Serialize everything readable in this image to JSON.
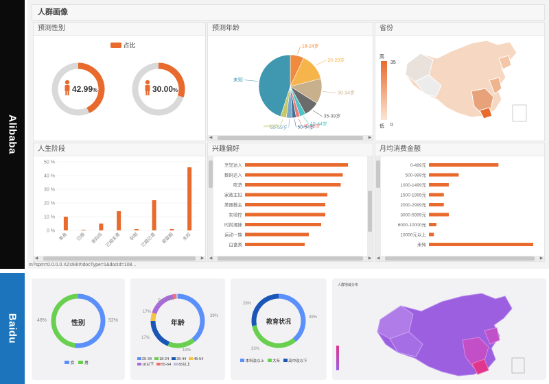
{
  "sidebar": {
    "alibaba": "Alibaba",
    "baidu": "Baidu"
  },
  "alibaba": {
    "header": "人群画像",
    "gender": {
      "title": "预测性别",
      "legend": "占比",
      "male_pct": "42.99",
      "female_pct": "30.00",
      "pct_unit": "%",
      "male_fraction": 0.4299,
      "female_fraction": 0.3,
      "color_fill": "#e86a2d",
      "color_track": "#d9d9d9"
    },
    "age": {
      "title": "预测年龄",
      "chart_data": {
        "type": "pie",
        "labels": [
          "18-24岁",
          "25-29岁",
          "30-34岁",
          "35-39岁",
          "40-44岁",
          "45-49岁",
          "50-54岁",
          "55-59岁",
          ">=60岁",
          "未知"
        ],
        "values": [
          7,
          14,
          13,
          8,
          3,
          2,
          2,
          3,
          3,
          45
        ],
        "colors": [
          "#f08a3c",
          "#f6b54b",
          "#c9b08c",
          "#6b6b6b",
          "#4dc3c7",
          "#f07a7a",
          "#3f6f91",
          "#7aa9c9",
          "#c5c76a",
          "#3f97b0"
        ]
      }
    },
    "province": {
      "title": "省份",
      "legend_high": "高",
      "legend_low": "低",
      "legend_max": "35",
      "legend_min": "0"
    },
    "life_stage": {
      "title": "人生阶段",
      "chart_data": {
        "type": "bar",
        "categories": [
          "单身",
          "已婚",
          "准妈妈",
          "已婚未育",
          "孕期",
          "已婚已育",
          "育婴期",
          "未知"
        ],
        "values": [
          10,
          0.5,
          5,
          14,
          1,
          22,
          1,
          46
        ],
        "yticks": [
          "50 %",
          "40 %",
          "30 %",
          "20 %",
          "10 %",
          "0 %"
        ],
        "ylim": [
          0,
          50
        ],
        "color": "#e86a2d"
      }
    },
    "interests": {
      "title": "兴趣偏好",
      "chart_data": {
        "type": "bar",
        "categories": [
          "烹饪达人",
          "数码达人",
          "吃货",
          "家政主妇",
          "美丽教主",
          "实验控",
          "时尚潮妹",
          "运动一族",
          "白富美"
        ],
        "values": [
          100,
          95,
          93,
          80,
          78,
          78,
          74,
          62,
          58
        ],
        "color": "#e86a2d"
      }
    },
    "spend": {
      "title": "月均消费金额",
      "chart_data": {
        "type": "bar",
        "categories": [
          "0-499元",
          "500-999元",
          "1000-1499元",
          "1500-1999元",
          "2000-2999元",
          "3000-5999元",
          "6000-10000元",
          "10000元以上",
          "未知"
        ],
        "values": [
          28,
          12,
          8,
          6,
          6,
          8,
          3,
          2,
          42
        ],
        "color": "#e86a2d"
      }
    },
    "url": "m?spm=0.0.0.0.XZs93I#!docType=1&docId=108..."
  },
  "baidu": {
    "gender": {
      "center": "性别",
      "left_pct": "48%",
      "right_pct": "52%",
      "legend": [
        "女",
        "男"
      ],
      "chart_data": {
        "type": "pie",
        "labels": [
          "男",
          "女"
        ],
        "values": [
          52,
          48
        ],
        "colors": [
          "#5b8ff9",
          "#69d04f"
        ]
      }
    },
    "age": {
      "center": "年龄",
      "labels": [
        "39%",
        "17%",
        "17%",
        "5%",
        "18%",
        "19%"
      ],
      "legend": [
        "25-34",
        "18-24",
        "35-44",
        "45-54",
        "18以下",
        "55-64",
        "65以上"
      ],
      "chart_data": {
        "type": "pie",
        "labels": [
          "25-34",
          "18-24",
          "35-44",
          "45-54",
          "18以下",
          "55-64",
          "65以上"
        ],
        "values": [
          39,
          17,
          19,
          5,
          17,
          2,
          1
        ],
        "colors": [
          "#5b8ff9",
          "#69d04f",
          "#1a56b5",
          "#f5c342",
          "#a86bd8",
          "#f36c6c",
          "#c5bce0"
        ]
      }
    },
    "edu": {
      "center": "教育状况",
      "labels": [
        "28%",
        "39%",
        "33%"
      ],
      "legend": [
        "本科及以上",
        "大专",
        "高中及以下"
      ],
      "chart_data": {
        "type": "pie",
        "labels": [
          "本科及以上",
          "大专",
          "高中及以下"
        ],
        "values": [
          39,
          33,
          28
        ],
        "colors": [
          "#5b8ff9",
          "#69d04f",
          "#1a56b5"
        ]
      }
    },
    "map": {
      "title": "人群地域分布"
    }
  }
}
